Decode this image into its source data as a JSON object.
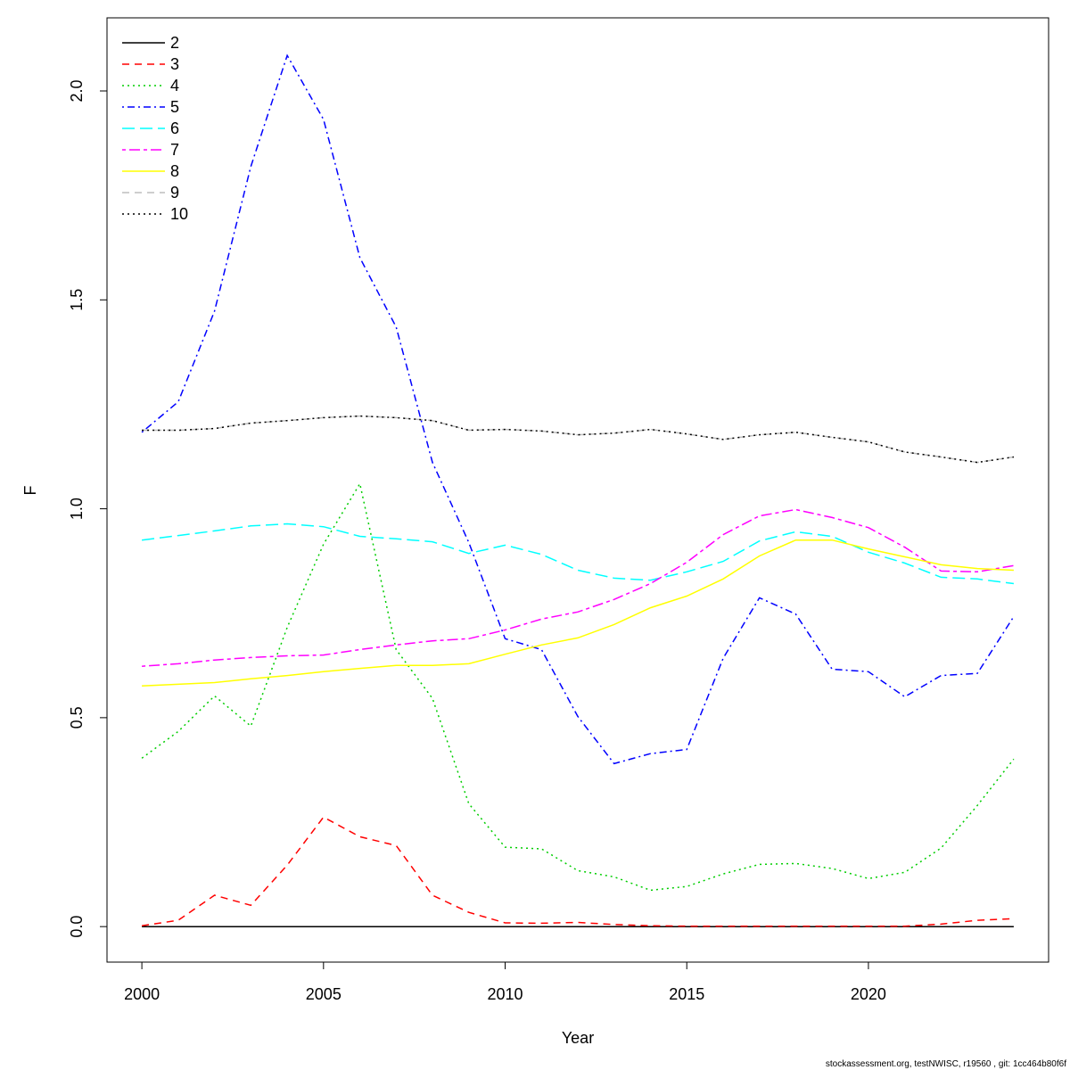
{
  "chart_data": {
    "type": "line",
    "xlabel": "Year",
    "ylabel": "F",
    "footnote": "stockassessment.org, testNWISC, r19560 , git: 1cc464b80f6f",
    "x": [
      2000,
      2001,
      2002,
      2003,
      2004,
      2005,
      2006,
      2007,
      2008,
      2009,
      2010,
      2011,
      2012,
      2013,
      2014,
      2015,
      2016,
      2017,
      2018,
      2019,
      2020,
      2021,
      2022,
      2023,
      2024
    ],
    "xlim": [
      1999.04,
      2024.96
    ],
    "xticks": [
      2000,
      2005,
      2010,
      2015,
      2020
    ],
    "ylim": [
      -0.085,
      2.175
    ],
    "yticks": [
      {
        "value": 0,
        "label": "0.0"
      },
      0.5,
      {
        "value": 1,
        "label": "1.0"
      },
      1.5,
      {
        "value": 2,
        "label": "2.0"
      }
    ],
    "legend": "top-left",
    "series": [
      {
        "name": "2",
        "color": "#000000",
        "linestyle": "solid",
        "values": [
          0,
          0,
          0,
          0,
          0,
          0,
          0,
          0,
          0,
          0,
          0,
          0,
          0,
          0,
          0,
          0,
          0,
          0,
          0,
          0,
          0,
          0,
          0,
          0,
          0
        ]
      },
      {
        "name": "3",
        "color": "#ff0000",
        "linestyle": "dashed",
        "values": [
          0.002,
          0.015,
          0.075,
          0.051,
          0.147,
          0.262,
          0.215,
          0.194,
          0.075,
          0.034,
          0.009,
          0.008,
          0.01,
          0.005,
          0.002,
          0.001,
          0.001,
          0.001,
          0.001,
          0.001,
          0.001,
          0.001,
          0.006,
          0.015,
          0.019
        ]
      },
      {
        "name": "4",
        "color": "#00cd00",
        "linestyle": "dotted",
        "values": [
          0.403,
          0.467,
          0.552,
          0.48,
          0.716,
          0.915,
          1.06,
          0.663,
          0.546,
          0.294,
          0.19,
          0.186,
          0.134,
          0.119,
          0.087,
          0.096,
          0.126,
          0.149,
          0.151,
          0.139,
          0.115,
          0.13,
          0.188,
          0.29,
          0.401
        ]
      },
      {
        "name": "5",
        "color": "#0000ff",
        "linestyle": "dotdash",
        "values": [
          1.183,
          1.256,
          1.473,
          1.819,
          2.085,
          1.932,
          1.601,
          1.435,
          1.111,
          0.919,
          0.689,
          0.663,
          0.503,
          0.39,
          0.414,
          0.424,
          0.642,
          0.787,
          0.748,
          0.616,
          0.61,
          0.55,
          0.601,
          0.606,
          0.742
        ]
      },
      {
        "name": "6",
        "color": "#00ffff",
        "linestyle": "longdash",
        "values": [
          0.925,
          0.936,
          0.947,
          0.959,
          0.964,
          0.957,
          0.934,
          0.928,
          0.921,
          0.893,
          0.913,
          0.891,
          0.853,
          0.834,
          0.829,
          0.849,
          0.874,
          0.923,
          0.945,
          0.934,
          0.896,
          0.87,
          0.836,
          0.832,
          0.821
        ]
      },
      {
        "name": "7",
        "color": "#ff00ff",
        "linestyle": "twodash",
        "values": [
          0.623,
          0.629,
          0.638,
          0.644,
          0.648,
          0.65,
          0.663,
          0.674,
          0.684,
          0.689,
          0.71,
          0.736,
          0.753,
          0.783,
          0.821,
          0.872,
          0.938,
          0.983,
          0.998,
          0.979,
          0.955,
          0.908,
          0.851,
          0.849,
          0.864
        ]
      },
      {
        "name": "8",
        "color": "#ffff00",
        "linestyle": "solid",
        "values": [
          0.576,
          0.58,
          0.584,
          0.593,
          0.601,
          0.61,
          0.618,
          0.625,
          0.625,
          0.629,
          0.652,
          0.674,
          0.691,
          0.723,
          0.763,
          0.791,
          0.832,
          0.887,
          0.925,
          0.925,
          0.904,
          0.885,
          0.866,
          0.857,
          0.853
        ]
      },
      {
        "name": "9",
        "color": "#bebebe",
        "linestyle": "dashed",
        "values": [
          1.188,
          1.188,
          1.192,
          1.205,
          1.211,
          1.218,
          1.222,
          1.218,
          1.211,
          1.188,
          1.19,
          1.186,
          1.177,
          1.181,
          1.19,
          1.179,
          1.166,
          1.177,
          1.183,
          1.171,
          1.16,
          1.136,
          1.124,
          1.111,
          1.124
        ]
      },
      {
        "name": "10",
        "color": "#000000",
        "linestyle": "dotted",
        "values": [
          1.188,
          1.188,
          1.192,
          1.205,
          1.211,
          1.218,
          1.222,
          1.218,
          1.211,
          1.188,
          1.19,
          1.186,
          1.177,
          1.181,
          1.19,
          1.179,
          1.166,
          1.177,
          1.183,
          1.171,
          1.16,
          1.136,
          1.124,
          1.111,
          1.124
        ]
      }
    ]
  }
}
